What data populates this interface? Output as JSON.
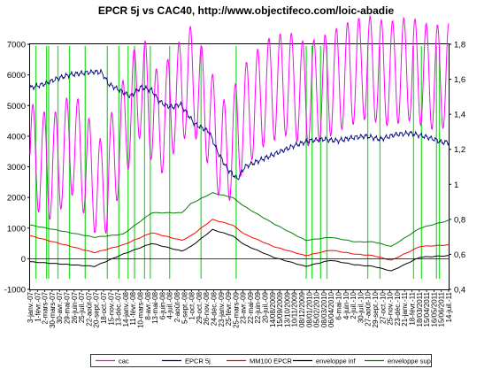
{
  "chart_data": {
    "type": "line",
    "title": "EPCR 5j vs CAC40, http://www.objectifeco.com/loic-abadie",
    "y_left": {
      "lim": [
        -1000,
        7000
      ],
      "ticks": [
        "7000",
        "6000",
        "5000",
        "4000",
        "3000",
        "2000",
        "1000",
        "0",
        "-1000"
      ]
    },
    "y_right": {
      "lim": [
        0.4,
        1.8
      ],
      "ticks": [
        "1,8",
        "1,6",
        "1,4",
        "1,2",
        "1",
        "0,8",
        "0,6",
        "0,4"
      ]
    },
    "x_tick_labels": [
      "3-janv.-07",
      "1-févr.-07",
      "2-mars-07",
      "30-mars-07",
      "30-avr.-07",
      "29-mai-07",
      "26-juin-07",
      "25-juil.-07",
      "22-août-07",
      "20-sept.-07",
      "18-oct.-07",
      "15-nov.-07",
      "13-déc.-07",
      "14-janv.-08",
      "11-févr.-08",
      "10-mars-08",
      "8-avr.-08",
      "13-mai-08",
      "6-juin-08",
      "4-juil.-08",
      "2-août-08",
      "5-sept.-08",
      "1-oct.-08",
      "29-oct.-08",
      "26-nov.-08",
      "24-déc.-08",
      "23-janv.-09",
      "25-févr.-09",
      "25-mars-09",
      "23-avr.-09",
      "22-mai-09",
      "22-juin-09",
      "20-juil.-09",
      "14/08/2009",
      "15/09/2009",
      "13/10/2009",
      "10/11/2009",
      "08/12/2009",
      "08/01/2010",
      "05/02/2010",
      "08/03/2010",
      "06/04/2010",
      "6-mai-10",
      "4-juin-10",
      "2-juil.-10",
      "30-juil.-10",
      "27-août-10",
      "29-sept.-10",
      "27-oct.-10",
      "25-nov.-10",
      "23-déc.-10",
      "21-janv.-11",
      "18-févr.-11",
      "18/03/2011",
      "15/04/2011",
      "16/05/2011",
      "15/06/2011",
      "14-juil.-11"
    ],
    "signals": [
      8,
      23,
      26,
      39,
      55,
      77,
      108,
      124,
      137,
      146,
      160,
      168,
      195,
      239,
      288,
      386,
      394,
      406,
      415,
      472,
      489,
      536,
      547,
      568,
      572
    ],
    "series": [
      {
        "name": "cac",
        "axis": "right",
        "color": "#ff00ff",
        "knots": [
          [
            0,
            1.17
          ],
          [
            30,
            1.09
          ],
          [
            60,
            1.24
          ],
          [
            100,
            0.95
          ],
          [
            130,
            1.3
          ],
          [
            155,
            1.58
          ],
          [
            180,
            1.33
          ],
          [
            200,
            1.47
          ],
          [
            225,
            1.61
          ],
          [
            245,
            1.45
          ],
          [
            268,
            1.18
          ],
          [
            281,
            1.21
          ],
          [
            288,
            1.29
          ],
          [
            300,
            1.39
          ],
          [
            330,
            1.53
          ],
          [
            360,
            1.58
          ],
          [
            385,
            1.51
          ],
          [
            410,
            1.55
          ],
          [
            440,
            1.62
          ],
          [
            470,
            1.67
          ],
          [
            500,
            1.63
          ],
          [
            530,
            1.66
          ],
          [
            560,
            1.61
          ],
          [
            585,
            1.62
          ]
        ]
      },
      {
        "name": "EPCR 5j",
        "axis": "left",
        "color": "#000080",
        "knots": [
          [
            0,
            5580
          ],
          [
            20,
            5700
          ],
          [
            40,
            5900
          ],
          [
            55,
            6000
          ],
          [
            70,
            6050
          ],
          [
            90,
            6100
          ],
          [
            100,
            6080
          ],
          [
            110,
            5700
          ],
          [
            125,
            5500
          ],
          [
            140,
            5300
          ],
          [
            155,
            5600
          ],
          [
            170,
            5500
          ],
          [
            180,
            5150
          ],
          [
            190,
            5000
          ],
          [
            200,
            4950
          ],
          [
            210,
            5050
          ],
          [
            230,
            4400
          ],
          [
            250,
            4150
          ],
          [
            262,
            3500
          ],
          [
            275,
            2950
          ],
          [
            290,
            2600
          ],
          [
            300,
            3000
          ],
          [
            320,
            3200
          ],
          [
            345,
            3450
          ],
          [
            370,
            3700
          ],
          [
            390,
            3850
          ],
          [
            410,
            3900
          ],
          [
            430,
            3850
          ],
          [
            450,
            3950
          ],
          [
            470,
            4000
          ],
          [
            490,
            3900
          ],
          [
            510,
            4050
          ],
          [
            530,
            4100
          ],
          [
            550,
            4000
          ],
          [
            565,
            3900
          ],
          [
            575,
            3800
          ],
          [
            585,
            3800
          ]
        ]
      },
      {
        "name": "MM100 EPCR",
        "axis": "left",
        "color": "#ff0000",
        "knots": [
          [
            0,
            750
          ],
          [
            90,
            200
          ],
          [
            130,
            450
          ],
          [
            170,
            850
          ],
          [
            212,
            600
          ],
          [
            225,
            750
          ],
          [
            255,
            1280
          ],
          [
            283,
            1100
          ],
          [
            300,
            800
          ],
          [
            340,
            400
          ],
          [
            385,
            100
          ],
          [
            420,
            280
          ],
          [
            455,
            150
          ],
          [
            480,
            100
          ],
          [
            505,
            -50
          ],
          [
            545,
            400
          ],
          [
            585,
            450
          ]
        ]
      },
      {
        "name": "enveloppe inf",
        "axis": "left",
        "color": "#000000",
        "knots": [
          [
            0,
            -100
          ],
          [
            90,
            -250
          ],
          [
            130,
            150
          ],
          [
            170,
            500
          ],
          [
            212,
            250
          ],
          [
            225,
            400
          ],
          [
            255,
            950
          ],
          [
            283,
            750
          ],
          [
            300,
            450
          ],
          [
            340,
            50
          ],
          [
            385,
            -250
          ],
          [
            420,
            -50
          ],
          [
            455,
            -200
          ],
          [
            480,
            -250
          ],
          [
            505,
            -400
          ],
          [
            545,
            50
          ],
          [
            585,
            100
          ]
        ]
      },
      {
        "name": "enveloppe sup",
        "axis": "left",
        "color": "#008000",
        "knots": [
          [
            0,
            1100
          ],
          [
            90,
            700
          ],
          [
            130,
            800
          ],
          [
            170,
            1500
          ],
          [
            212,
            1500
          ],
          [
            225,
            1800
          ],
          [
            255,
            2150
          ],
          [
            283,
            2000
          ],
          [
            300,
            1700
          ],
          [
            340,
            1150
          ],
          [
            385,
            600
          ],
          [
            420,
            700
          ],
          [
            455,
            550
          ],
          [
            480,
            550
          ],
          [
            505,
            400
          ],
          [
            545,
            1000
          ],
          [
            585,
            1250
          ]
        ]
      }
    ]
  }
}
